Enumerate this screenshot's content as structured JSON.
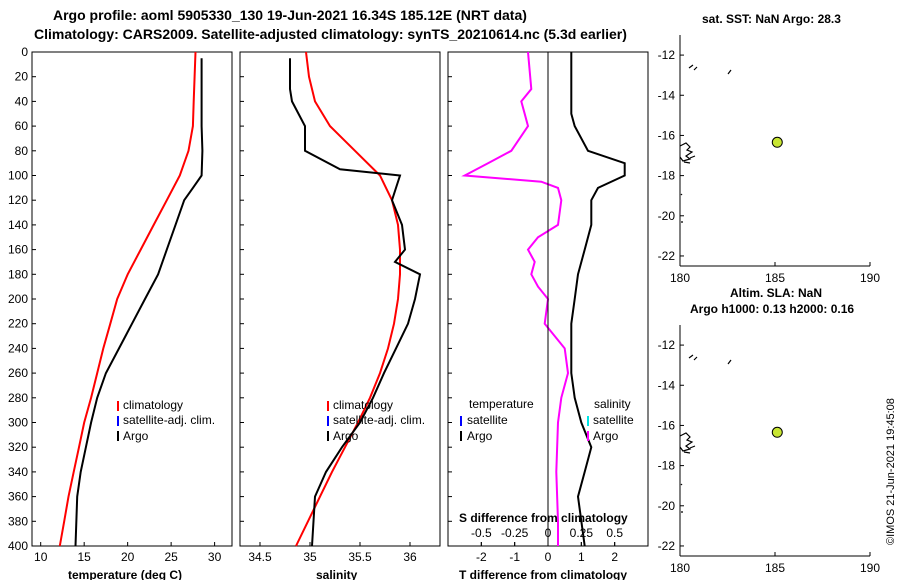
{
  "header": {
    "line1": "Argo profile: aoml 5905330_130 19-Jun-2021 16.34S 185.12E (NRT data)",
    "line2": "Climatology: CARS2009. Satellite-adjusted climatology: synTS_20210614.nc (5.3d earlier)"
  },
  "depth_axis": {
    "ticks": [
      "0",
      "20",
      "40",
      "60",
      "80",
      "100",
      "120",
      "140",
      "160",
      "180",
      "200",
      "220",
      "240",
      "260",
      "280",
      "300",
      "320",
      "340",
      "360",
      "380",
      "400"
    ]
  },
  "colors": {
    "climatology": "#ff0000",
    "satellite": "#0000ff",
    "argo": "#000000",
    "temp_diff": "#ff00ff",
    "sal_satellite": "#00e5e5",
    "sal_argo": "#ff00ff",
    "marker": "#c8e632"
  },
  "chart_data": [
    {
      "type": "line",
      "id": "temperature",
      "xlabel": "temperature (deg C)",
      "ylabel": "depth",
      "xlim": [
        9,
        32
      ],
      "ylim": [
        400,
        0
      ],
      "x_ticks": [
        "10",
        "15",
        "20",
        "25",
        "30"
      ],
      "legend": [
        "climatology",
        "satellite-adj. clim.",
        "Argo"
      ],
      "series": [
        {
          "name": "climatology",
          "x": [
            27.8,
            27.7,
            27.6,
            27.5,
            27.0,
            26.0,
            24.5,
            23.0,
            21.5,
            20.0,
            18.8,
            18.0,
            17.2,
            16.5,
            15.8,
            15.0,
            14.4,
            13.8,
            13.2,
            12.7,
            12.2
          ],
          "y": [
            0,
            20,
            40,
            60,
            80,
            100,
            120,
            140,
            160,
            180,
            200,
            220,
            240,
            260,
            280,
            300,
            320,
            340,
            360,
            380,
            400
          ]
        },
        {
          "name": "Argo",
          "x": [
            28.5,
            28.5,
            28.5,
            28.5,
            28.6,
            28.5,
            27.5,
            26.5,
            25.5,
            24.5,
            23.5,
            22.0,
            20.5,
            19.0,
            17.5,
            16.5,
            15.8,
            15.2,
            14.6,
            14.2,
            14.0
          ],
          "y": [
            5,
            20,
            40,
            60,
            80,
            100,
            110,
            120,
            140,
            160,
            180,
            200,
            220,
            240,
            260,
            280,
            300,
            320,
            340,
            360,
            400
          ]
        }
      ]
    },
    {
      "type": "line",
      "id": "salinity",
      "xlabel": "salinity",
      "ylabel": "depth",
      "xlim": [
        34.3,
        36.3
      ],
      "ylim": [
        400,
        0
      ],
      "x_ticks": [
        "34.5",
        "35",
        "35.5",
        "36"
      ],
      "legend": [
        "climatology",
        "satellite-adj. clim.",
        "Argo"
      ],
      "series": [
        {
          "name": "climatology",
          "x": [
            34.96,
            34.99,
            35.05,
            35.2,
            35.45,
            35.7,
            35.82,
            35.88,
            35.9,
            35.9,
            35.88,
            35.84,
            35.78,
            35.7,
            35.6,
            35.48,
            35.35,
            35.22,
            35.1,
            34.98,
            34.86
          ],
          "y": [
            0,
            20,
            40,
            60,
            80,
            100,
            120,
            140,
            160,
            180,
            200,
            220,
            240,
            260,
            280,
            300,
            320,
            340,
            360,
            380,
            400
          ]
        },
        {
          "name": "Argo",
          "x": [
            34.8,
            34.8,
            34.82,
            34.95,
            34.95,
            35.3,
            35.9,
            35.82,
            35.92,
            35.95,
            35.85,
            36.1,
            36.05,
            35.98,
            35.86,
            35.74,
            35.63,
            35.5,
            35.32,
            35.16,
            35.05,
            35.02
          ],
          "y": [
            5,
            30,
            40,
            60,
            80,
            95,
            100,
            120,
            140,
            160,
            170,
            180,
            200,
            220,
            240,
            260,
            280,
            300,
            320,
            340,
            360,
            400
          ]
        }
      ]
    },
    {
      "type": "line",
      "id": "difference",
      "xlabel": "T difference from climatology",
      "xlabel_top": "S difference from climatology",
      "ylabel": "depth",
      "xlim": [
        -3,
        3
      ],
      "ylim": [
        400,
        0
      ],
      "x_ticks": [
        "-2",
        "-1",
        "0",
        "1",
        "2"
      ],
      "x_ticks_s": [
        "-0.5",
        "-0.25",
        "0",
        "0.25",
        "0.5"
      ],
      "legend_t_title": "temperature",
      "legend_s_title": "salinity",
      "legend": [
        "satellite",
        "Argo",
        "satellite",
        "Argo"
      ],
      "series": [
        {
          "name": "T Argo",
          "x": [
            0.7,
            0.7,
            0.7,
            0.8,
            1.2,
            2.3,
            2.3,
            1.5,
            1.3,
            1.3,
            1.1,
            0.9,
            0.8,
            0.7,
            0.7,
            0.8,
            1.0,
            1.3,
            1.1,
            0.9,
            1.1
          ],
          "y": [
            0,
            40,
            50,
            60,
            80,
            90,
            100,
            110,
            120,
            140,
            160,
            180,
            200,
            220,
            260,
            280,
            300,
            320,
            340,
            360,
            400
          ]
        },
        {
          "name": "S Argo",
          "x": [
            -0.6,
            -0.5,
            -0.8,
            -0.7,
            -0.6,
            -1.1,
            -1.8,
            -2.5,
            -0.2,
            0.3,
            0.4,
            0.3,
            -0.3,
            -0.6,
            -0.4,
            -0.5,
            -0.3,
            0.0,
            -0.1,
            0.5,
            0.6,
            0.4,
            0.3,
            0.25,
            0.3,
            0.3
          ],
          "y": [
            0,
            30,
            40,
            50,
            60,
            80,
            90,
            100,
            105,
            110,
            120,
            140,
            150,
            160,
            170,
            180,
            190,
            200,
            220,
            240,
            260,
            280,
            300,
            340,
            380,
            400
          ]
        }
      ]
    },
    {
      "type": "scatter",
      "id": "map-sst",
      "title": "sat. SST: NaN  Argo: 28.3",
      "xlim": [
        180,
        190
      ],
      "ylim": [
        -22.5,
        -11
      ],
      "x_ticks": [
        "180",
        "185",
        "190"
      ],
      "y_ticks": [
        "-12",
        "-14",
        "-16",
        "-18",
        "-20",
        "-22"
      ],
      "points": [
        {
          "name": "Argo",
          "x": 185.12,
          "y": -16.34
        }
      ]
    },
    {
      "type": "scatter",
      "id": "map-sla",
      "title": "Altim. SLA: NaN",
      "subtitle": "Argo h1000: 0.13 h2000: 0.16",
      "xlim": [
        180,
        190
      ],
      "ylim": [
        -22.5,
        -11
      ],
      "x_ticks": [
        "180",
        "185",
        "190"
      ],
      "y_ticks": [
        "-12",
        "-14",
        "-16",
        "-18",
        "-20",
        "-22"
      ],
      "points": [
        {
          "name": "Argo",
          "x": 185.12,
          "y": -16.34
        }
      ]
    }
  ],
  "credit": "©IMOS 21-Jun-2021 19:45:08"
}
